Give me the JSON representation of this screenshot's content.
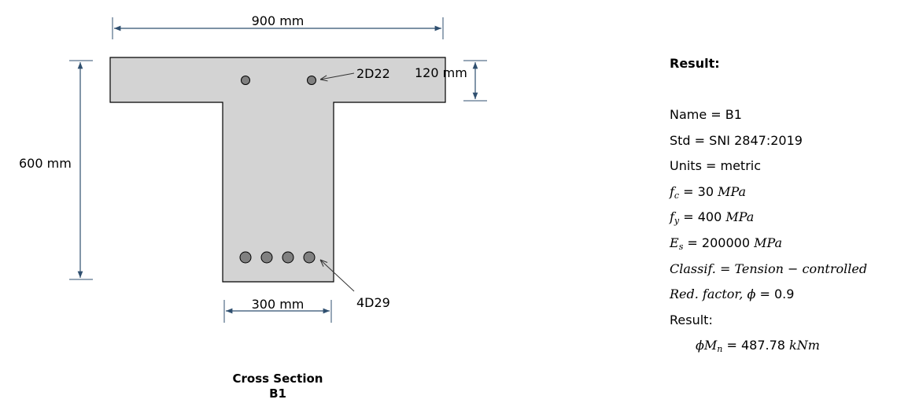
{
  "section": {
    "flange_width_label": "900 mm",
    "total_height_label": "600 mm",
    "flange_thickness_label": "120 mm",
    "web_width_label": "300 mm",
    "top_bar_label": "2D22",
    "bottom_bar_label": "4D29",
    "top_bars_count": 2,
    "bottom_bars_count": 4,
    "caption_line1": "Cross Section",
    "caption_line2": "B1",
    "colors": {
      "concrete": "#d3d3d3",
      "rebar": "#808080",
      "dimension": "#2f4f6f",
      "outline": "#000000"
    }
  },
  "result": {
    "heading": "Result:",
    "name": "Name = B1",
    "std": "Std = SNI 2847:2019",
    "units": "Units = metric",
    "fc_symbol": "f",
    "fc_sub": "c",
    "fc_value": " = 30 ",
    "fc_unit": "MPa",
    "fy_symbol": "f",
    "fy_sub": "y",
    "fy_value": " = 400 ",
    "fy_unit": "MPa",
    "es_symbol": "E",
    "es_sub": "s",
    "es_value": " = 200000 ",
    "es_unit": "MPa",
    "classif": "Classif. = Tension − controlled",
    "redfactor_label": "Red. factor, ϕ",
    "redfactor_value": " = 0.9",
    "result_label": "Result:",
    "moment_symbol": "ϕM",
    "moment_sub": "n",
    "moment_value": " = 487.78 ",
    "moment_unit": "kNm"
  }
}
